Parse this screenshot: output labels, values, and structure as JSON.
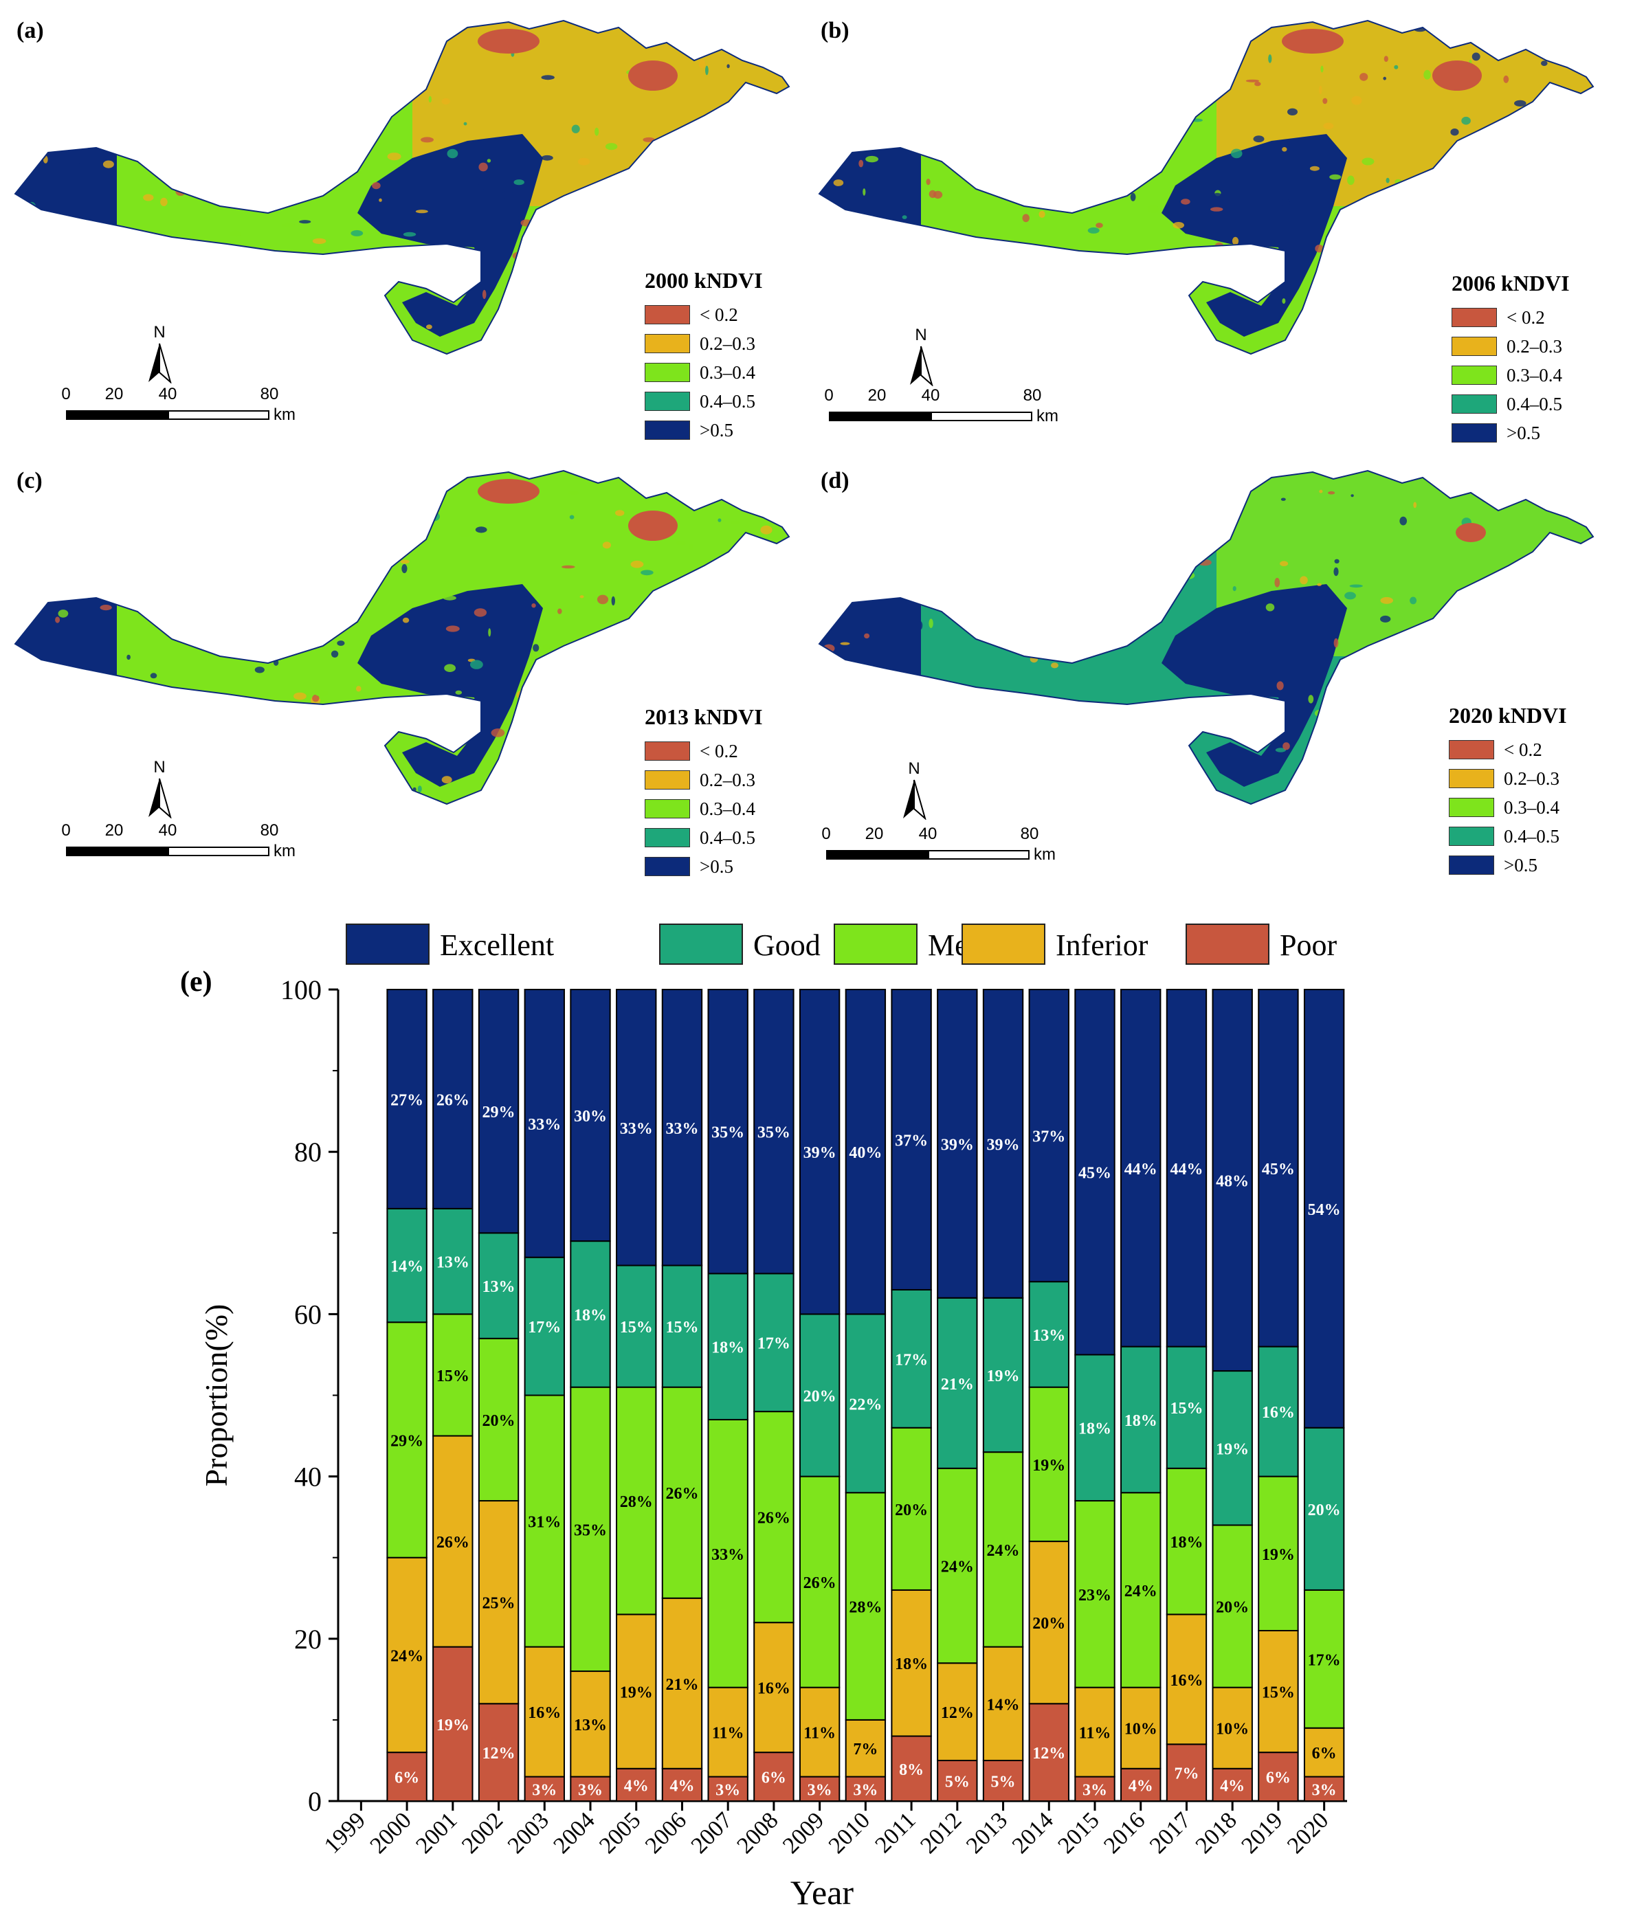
{
  "maps": [
    {
      "label": "(a)",
      "legend_title": "2000 kNDVI"
    },
    {
      "label": "(b)",
      "legend_title": "2006 kNDVI"
    },
    {
      "label": "(c)",
      "legend_title": "2013 kNDVI"
    },
    {
      "label": "(d)",
      "legend_title": "2020 kNDVI"
    }
  ],
  "map_legend": {
    "classes": [
      {
        "label": "< 0.2",
        "color": "#c8573e"
      },
      {
        "label": "0.2–0.3",
        "color": "#e8b21c"
      },
      {
        "label": "0.3–0.4",
        "color": "#7ee41c"
      },
      {
        "label": "0.4–0.5",
        "color": "#1ea77a"
      },
      {
        "label": ">0.5",
        "color": "#0c2a7a"
      }
    ]
  },
  "north_arrow": {
    "label": "N"
  },
  "scale_bar": {
    "ticks": [
      "0",
      "20",
      "40",
      "80"
    ],
    "unit": "km"
  },
  "chart_data": {
    "type": "bar",
    "stacked": true,
    "panel_label": "(e)",
    "xlabel": "Year",
    "ylabel": "Proportion(%)",
    "ylim": [
      0,
      100
    ],
    "yticks": [
      0,
      20,
      40,
      60,
      80,
      100
    ],
    "x_ticks": [
      "1999",
      "2000",
      "2001",
      "2002",
      "2003",
      "2004",
      "2005",
      "2006",
      "2007",
      "2008",
      "2009",
      "2010",
      "2011",
      "2012",
      "2013",
      "2014",
      "2015",
      "2016",
      "2017",
      "2018",
      "2019",
      "2020"
    ],
    "categories": [
      "2000",
      "2001",
      "2002",
      "2003",
      "2004",
      "2005",
      "2006",
      "2007",
      "2008",
      "2009",
      "2010",
      "2011",
      "2012",
      "2013",
      "2014",
      "2015",
      "2016",
      "2017",
      "2018",
      "2019",
      "2020"
    ],
    "legend_position": "top",
    "series": [
      {
        "name": "Poor",
        "color": "#c8573e",
        "label_color": "#ffffff",
        "values": [
          6,
          19,
          12,
          3,
          3,
          4,
          4,
          3,
          6,
          3,
          3,
          8,
          5,
          5,
          12,
          3,
          4,
          7,
          4,
          6,
          3
        ],
        "labels": [
          "6%",
          "19%",
          "12%",
          "3%",
          "3%",
          "4%",
          "4%",
          "3%",
          "6%",
          "3%",
          "3%",
          "8%",
          "5%",
          "5%",
          "12%",
          "3%",
          "4%",
          "7%",
          "4%",
          "6%",
          "3%"
        ]
      },
      {
        "name": "Inferior",
        "color": "#e8b21c",
        "label_color": "#000000",
        "values": [
          24,
          26,
          25,
          16,
          13,
          19,
          21,
          11,
          16,
          11,
          7,
          18,
          12,
          14,
          20,
          11,
          10,
          16,
          10,
          15,
          6
        ],
        "labels": [
          "24%",
          "26%",
          "25%",
          "16%",
          "13%",
          "19%",
          "21%",
          "11%",
          "16%",
          "11%",
          "7%",
          "18%",
          "12%",
          "14%",
          "20%",
          "11%",
          "10%",
          "16%",
          "10%",
          "15%",
          "6%"
        ]
      },
      {
        "name": "Medium",
        "color": "#7ee41c",
        "label_color": "#000000",
        "values": [
          29,
          15,
          20,
          31,
          35,
          28,
          26,
          33,
          26,
          26,
          28,
          20,
          24,
          24,
          19,
          23,
          24,
          18,
          20,
          19,
          17
        ],
        "labels": [
          "29%",
          "15%",
          "20%",
          "31%",
          "35%",
          "28%",
          "26%",
          "33%",
          "26%",
          "26%",
          "28%",
          "20%",
          "24%",
          "24%",
          "19%",
          "23%",
          "24%",
          "18%",
          "20%",
          "19%",
          "17%"
        ]
      },
      {
        "name": "Good",
        "color": "#1ea77a",
        "label_color": "#ffffff",
        "values": [
          14,
          13,
          13,
          17,
          18,
          15,
          15,
          18,
          17,
          20,
          22,
          17,
          21,
          19,
          13,
          18,
          18,
          15,
          19,
          16,
          20
        ],
        "labels": [
          "14%",
          "13%",
          "13%",
          "17%",
          "18%",
          "15%",
          "15%",
          "18%",
          "17%",
          "20%",
          "22%",
          "17%",
          "21%",
          "19%",
          "13%",
          "18%",
          "18%",
          "15%",
          "19%",
          "16%",
          "20%"
        ]
      },
      {
        "name": "Excellent",
        "color": "#0c2a7a",
        "label_color": "#ffffff",
        "values": [
          27,
          26,
          29,
          33,
          30,
          33,
          33,
          35,
          35,
          39,
          40,
          37,
          39,
          39,
          37,
          45,
          44,
          44,
          48,
          45,
          54
        ],
        "labels": [
          "27%",
          "26%",
          "29%",
          "33%",
          "30%",
          "33%",
          "33%",
          "35%",
          "35%",
          "39%",
          "40%",
          "37%",
          "39%",
          "39%",
          "37%",
          "45%",
          "44%",
          "44%",
          "48%",
          "45%",
          "54%"
        ]
      }
    ],
    "legend_order": [
      "Excellent",
      "Good",
      "Medium",
      "Inferior",
      "Poor"
    ]
  }
}
